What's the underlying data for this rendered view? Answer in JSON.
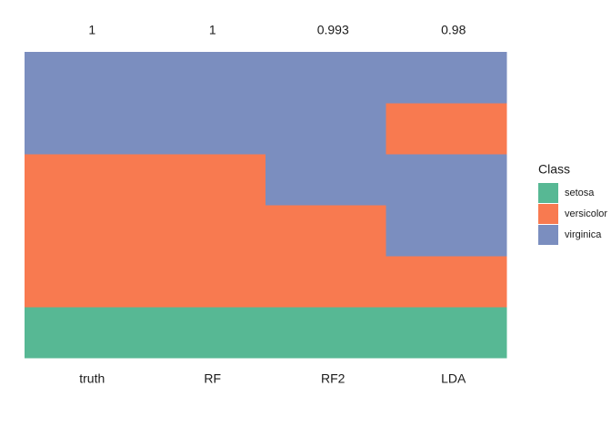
{
  "chart_data": {
    "type": "tile",
    "categories": [
      "truth",
      "RF",
      "RF2",
      "LDA"
    ],
    "values": [
      1,
      1,
      0.993,
      0.98
    ],
    "cells": [
      [
        "setosa",
        "versicolor",
        "versicolor",
        "versicolor",
        "virginica",
        "virginica"
      ],
      [
        "setosa",
        "versicolor",
        "versicolor",
        "versicolor",
        "virginica",
        "virginica"
      ],
      [
        "setosa",
        "versicolor",
        "versicolor",
        "virginica",
        "virginica",
        "virginica"
      ],
      [
        "setosa",
        "versicolor",
        "virginica",
        "virginica",
        "versicolor",
        "virginica"
      ]
    ],
    "legend_title": "Class",
    "classes": [
      {
        "name": "setosa",
        "color": "#57b894"
      },
      {
        "name": "versicolor",
        "color": "#f87a50"
      },
      {
        "name": "virginica",
        "color": "#7b8ebf"
      }
    ]
  }
}
